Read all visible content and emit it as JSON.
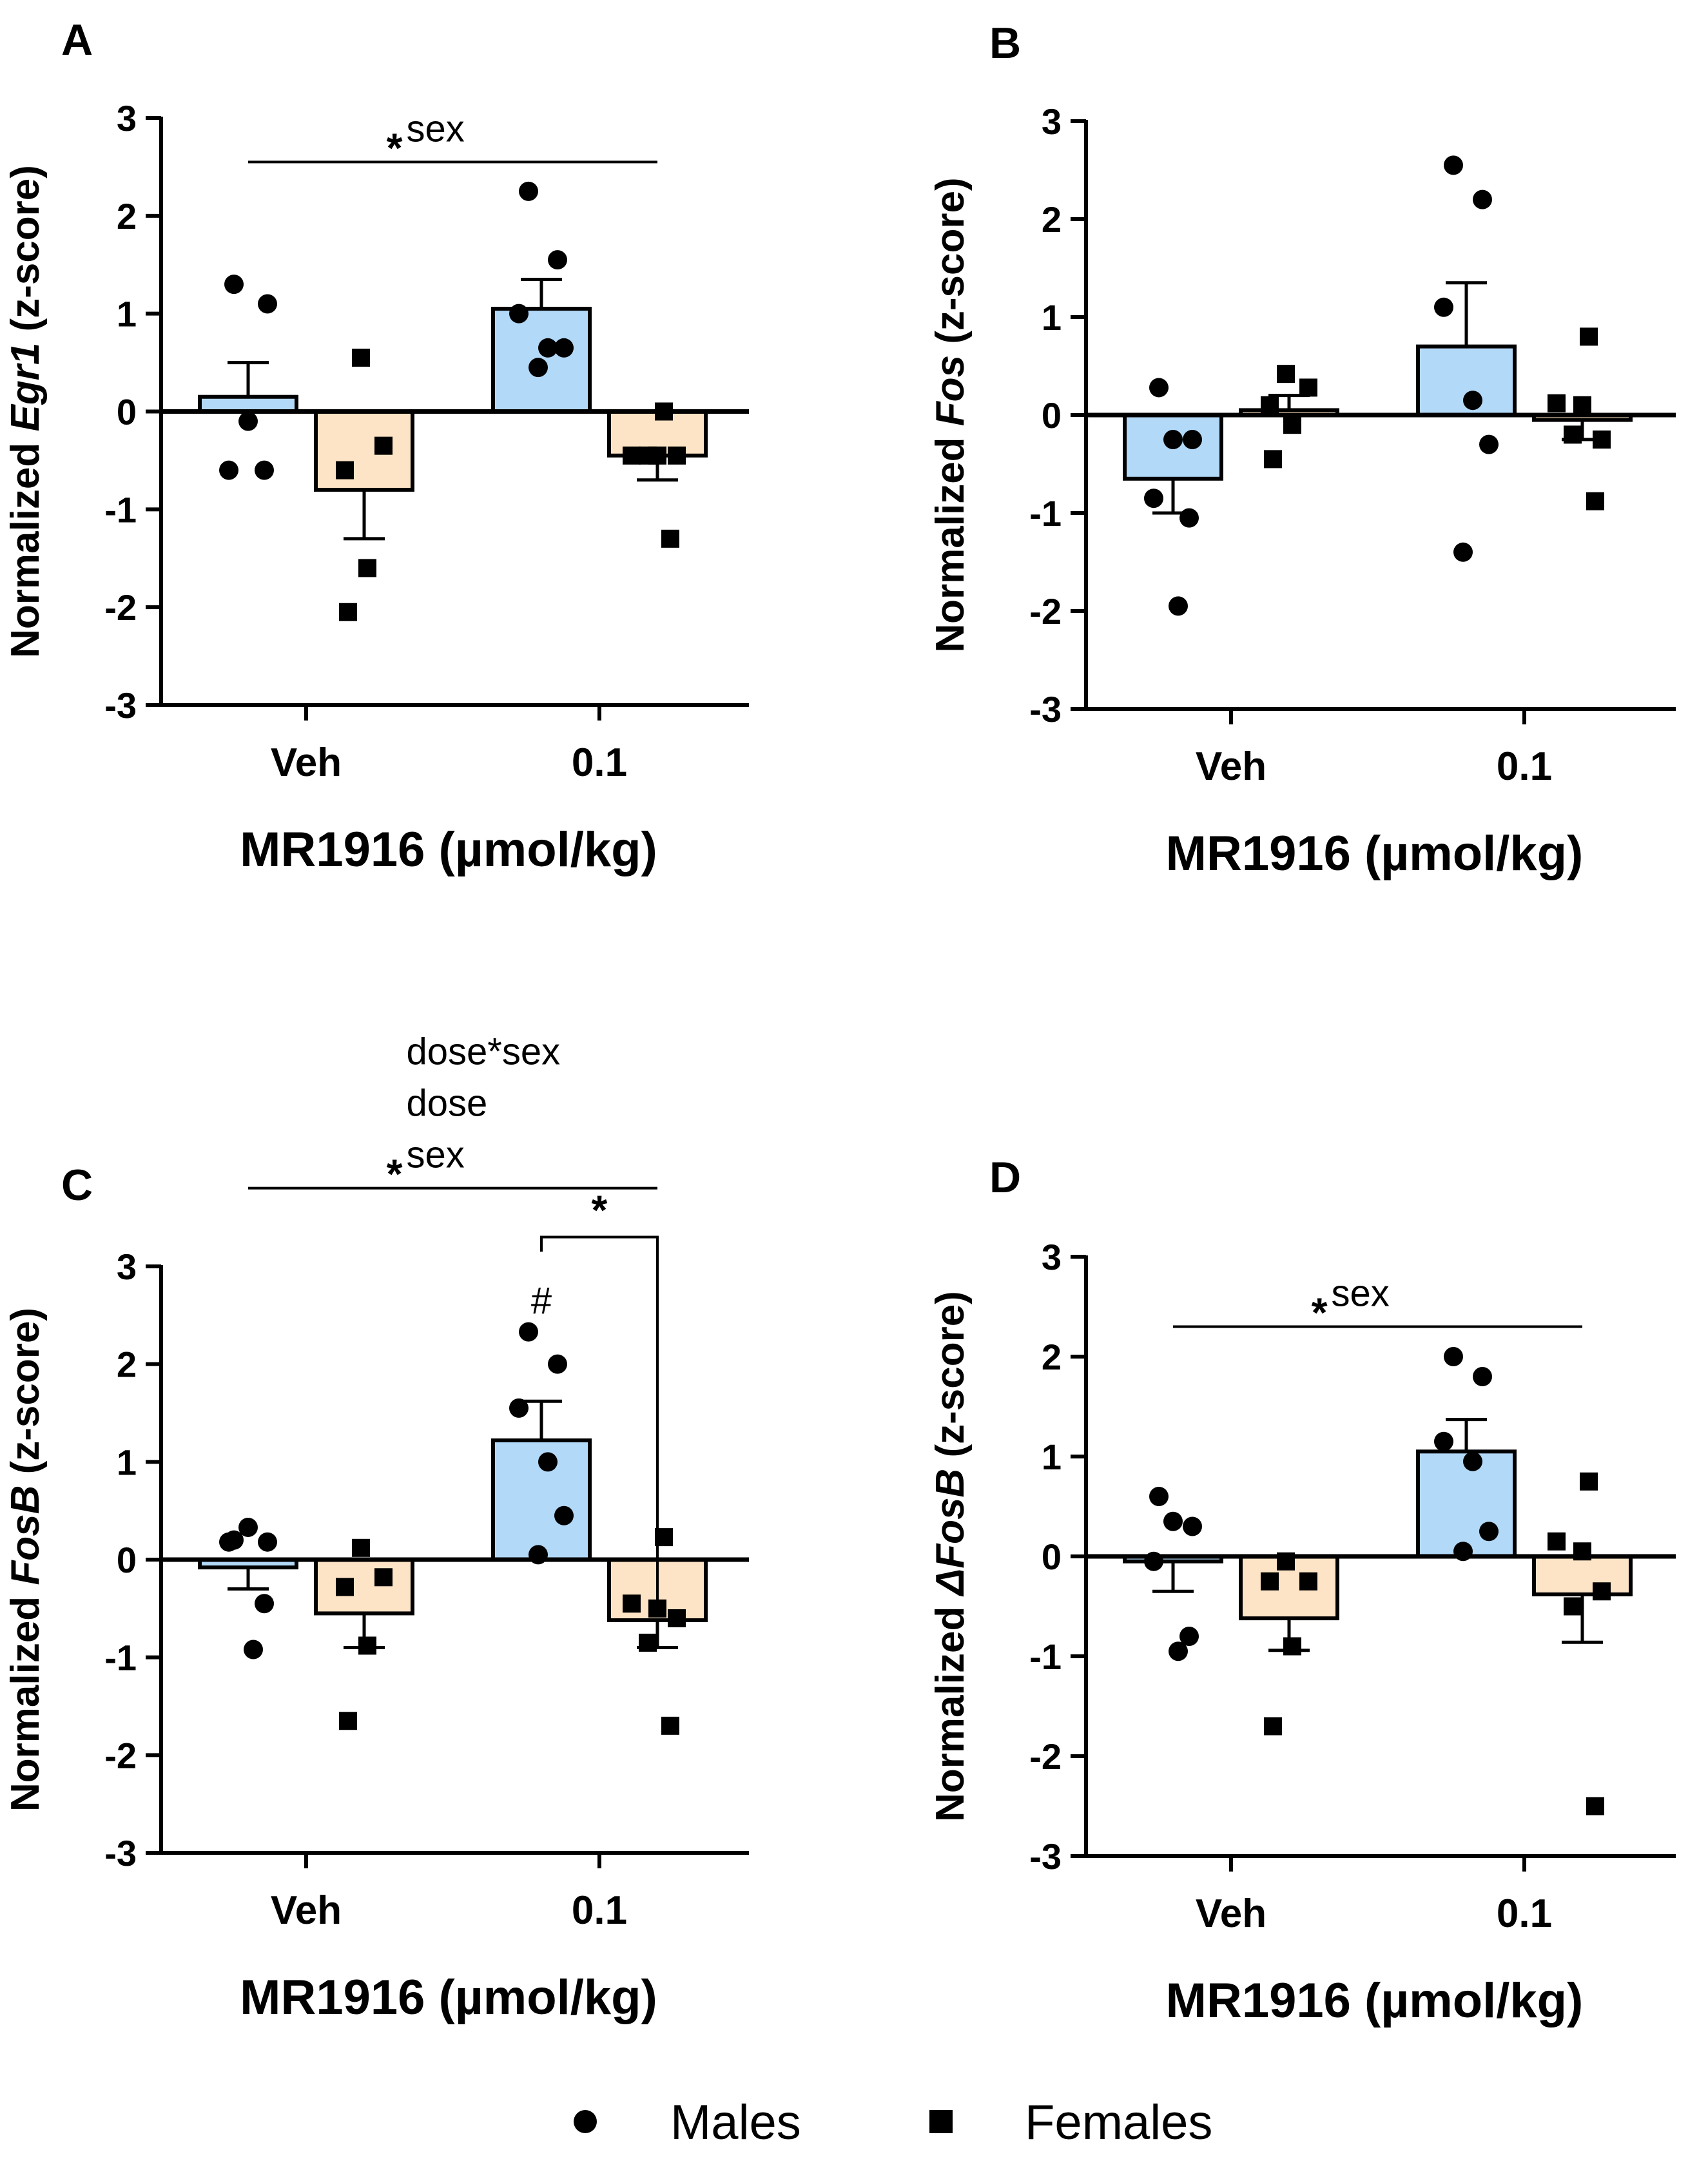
{
  "figure": {
    "legend": [
      {
        "label": "Males",
        "marker": "circle"
      },
      {
        "label": "Females",
        "marker": "square"
      }
    ],
    "colors": {
      "males": "#b3d9f8",
      "females": "#fde4c6",
      "ink": "#000000"
    }
  },
  "chart_data": [
    {
      "panel": "A",
      "type": "bar",
      "ylabel_pre": "Normalized ",
      "ylabel_gene": "Egr1",
      "ylabel_post": " (z-score)",
      "xlabel": "MR1916 (µmol/kg)",
      "categories": [
        "Veh",
        "0.1"
      ],
      "ylim": [
        -3,
        3
      ],
      "yticks": [
        3,
        2,
        1,
        0,
        -1,
        -2,
        -3
      ],
      "series": [
        {
          "name": "Males",
          "values": [
            0.15,
            1.05
          ],
          "sem": [
            0.35,
            0.3
          ],
          "points": [
            [
              1.3,
              1.1,
              -0.1,
              -0.6,
              -0.6
            ],
            [
              2.25,
              1.55,
              1.0,
              0.65,
              0.65,
              0.45
            ]
          ]
        },
        {
          "name": "Females",
          "values": [
            -0.8,
            -0.45
          ],
          "sem": [
            0.5,
            0.25
          ],
          "points": [
            [
              0.55,
              -0.35,
              -0.6,
              -1.6,
              -2.05
            ],
            [
              0.0,
              -0.45,
              -0.45,
              -0.45,
              -0.45,
              -1.3
            ]
          ]
        }
      ],
      "annotations": {
        "stats": [
          {
            "star": "*",
            "text": "sex"
          }
        ],
        "bracket": {
          "from": "Veh",
          "to": "0.1",
          "y": 2.55
        }
      }
    },
    {
      "panel": "B",
      "type": "bar",
      "ylabel_pre": "Normalized ",
      "ylabel_gene": "Fos",
      "ylabel_post": " (z-score)",
      "xlabel": "MR1916 (µmol/kg)",
      "categories": [
        "Veh",
        "0.1"
      ],
      "ylim": [
        -3,
        3
      ],
      "yticks": [
        3,
        2,
        1,
        0,
        -1,
        -2,
        -3
      ],
      "series": [
        {
          "name": "Males",
          "values": [
            -0.65,
            0.7
          ],
          "sem": [
            0.35,
            0.65
          ],
          "points": [
            [
              0.28,
              -0.25,
              -0.25,
              -0.85,
              -1.05,
              -1.95
            ],
            [
              2.55,
              2.2,
              1.1,
              0.15,
              -0.3,
              -1.4
            ]
          ]
        },
        {
          "name": "Females",
          "values": [
            0.05,
            -0.05
          ],
          "sem": [
            0.15,
            0.2
          ],
          "points": [
            [
              0.42,
              0.28,
              0.1,
              -0.1,
              -0.45
            ],
            [
              0.8,
              0.12,
              0.1,
              -0.25,
              -0.2,
              -0.88
            ]
          ]
        }
      ],
      "annotations": {
        "stats": [],
        "bracket": null
      }
    },
    {
      "panel": "C",
      "type": "bar",
      "ylabel_pre": "Normalized ",
      "ylabel_gene": "FosB",
      "ylabel_post": " (z-score)",
      "xlabel": "MR1916 (µmol/kg)",
      "categories": [
        "Veh",
        "0.1"
      ],
      "ylim": [
        -3,
        3
      ],
      "yticks": [
        3,
        2,
        1,
        0,
        -1,
        -2,
        -3
      ],
      "series": [
        {
          "name": "Males",
          "values": [
            -0.08,
            1.22
          ],
          "sem": [
            0.22,
            0.4
          ],
          "points": [
            [
              0.2,
              0.18,
              0.33,
              0.18,
              -0.45,
              -0.92
            ],
            [
              2.33,
              2.0,
              1.55,
              1.0,
              0.45,
              0.05
            ]
          ]
        },
        {
          "name": "Females",
          "values": [
            -0.55,
            -0.62
          ],
          "sem": [
            0.35,
            0.28
          ],
          "points": [
            [
              0.12,
              -0.18,
              -0.28,
              -0.88,
              -1.65
            ],
            [
              0.23,
              -0.45,
              -0.5,
              -0.6,
              -0.85,
              -1.7
            ]
          ]
        }
      ],
      "annotations": {
        "stats": [
          {
            "star": "",
            "text": "dose*sex"
          },
          {
            "star": "",
            "text": "dose"
          },
          {
            "star": "*",
            "text": "sex"
          }
        ],
        "bracket": {
          "from": "Veh",
          "to": "0.1",
          "y": 3.8
        },
        "pair_bracket": {
          "label": "*",
          "y": 3.3
        },
        "hash": {
          "label": "#",
          "y": 2.65
        }
      }
    },
    {
      "panel": "D",
      "type": "bar",
      "ylabel_pre": "Normalized ",
      "ylabel_gene": "ΔFosB",
      "ylabel_post": " (z-score)",
      "xlabel": "MR1916 (µmol/kg)",
      "categories": [
        "Veh",
        "0.1"
      ],
      "ylim": [
        -3,
        3
      ],
      "yticks": [
        3,
        2,
        1,
        0,
        -1,
        -2,
        -3
      ],
      "series": [
        {
          "name": "Males",
          "values": [
            -0.05,
            1.05
          ],
          "sem": [
            0.3,
            0.32
          ],
          "points": [
            [
              0.6,
              0.3,
              0.35,
              -0.05,
              -0.8,
              -0.95
            ],
            [
              2.0,
              1.8,
              1.15,
              0.95,
              0.25,
              0.05
            ]
          ]
        },
        {
          "name": "Females",
          "values": [
            -0.62,
            -0.38
          ],
          "sem": [
            0.32,
            0.48
          ],
          "points": [
            [
              -0.05,
              -0.25,
              -0.25,
              -0.9,
              -1.7
            ],
            [
              0.75,
              0.15,
              0.05,
              -0.35,
              -0.5,
              -2.5
            ]
          ]
        }
      ],
      "annotations": {
        "stats": [
          {
            "star": "*",
            "text": "sex"
          }
        ],
        "bracket": {
          "from": "Veh",
          "to": "0.1",
          "y": 2.3
        }
      }
    }
  ]
}
